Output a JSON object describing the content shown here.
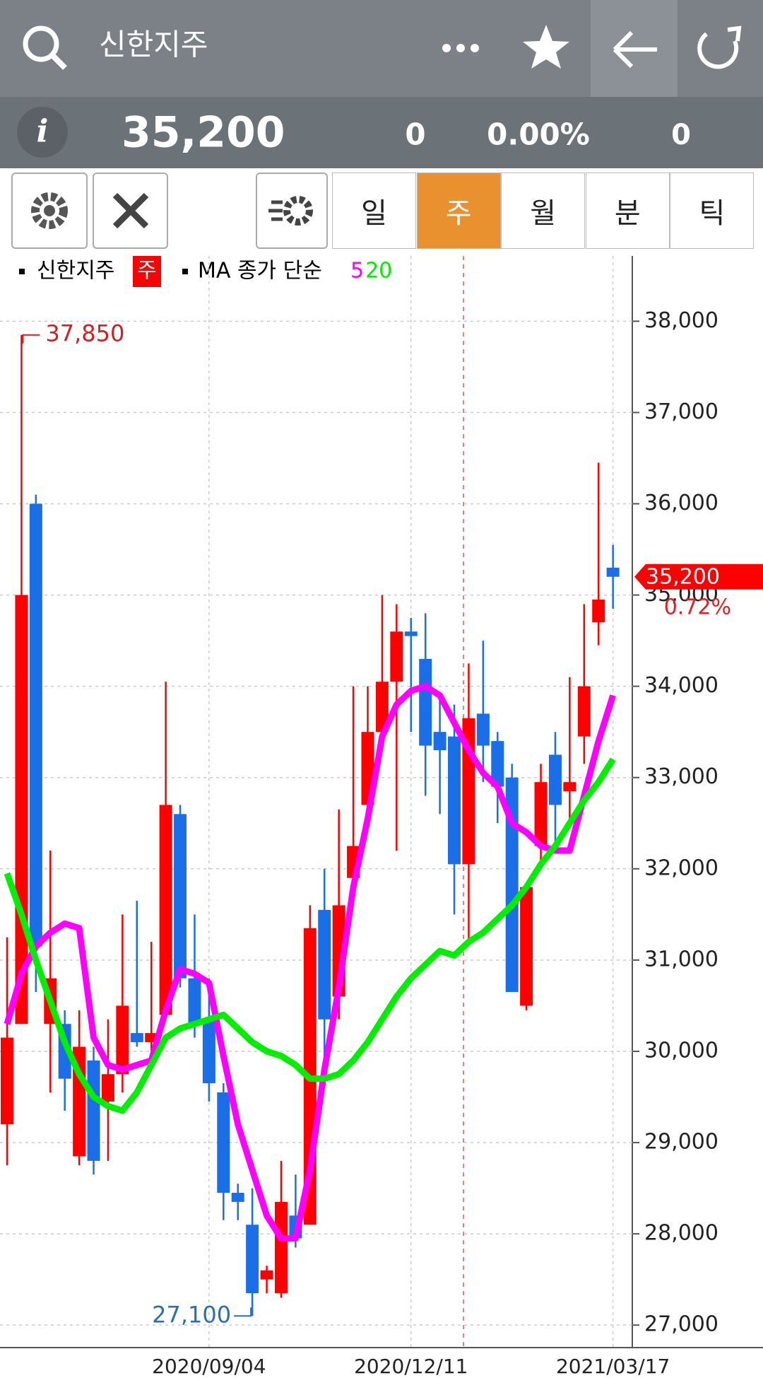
{
  "header": {
    "title": "신한지주"
  },
  "quote": {
    "price": "35,200",
    "change": "0",
    "rate": "0.00%",
    "volume": "0"
  },
  "periods": [
    "일",
    "주",
    "월",
    "분",
    "틱"
  ],
  "selected_period": 1,
  "chart_data": {
    "type": "candlestick",
    "legend_label": "신한지주",
    "period_badge": "주",
    "ma_label": "MA 종가 단순",
    "up_color": "#ff0000",
    "down_color": "#1a6ee8",
    "grid": true,
    "categories": [
      null,
      null,
      null,
      null,
      null,
      null,
      null,
      null,
      null,
      null,
      null,
      null,
      null,
      null,
      "2020/09/04",
      null,
      null,
      null,
      null,
      null,
      null,
      null,
      null,
      null,
      null,
      null,
      null,
      null,
      "2020/12/11",
      null,
      null,
      null,
      null,
      null,
      null,
      null,
      null,
      null,
      null,
      null,
      null,
      null,
      "2021/03/17"
    ],
    "open": [
      29200,
      30300,
      36000,
      30300,
      30300,
      28850,
      29900,
      29450,
      29750,
      30200,
      30100,
      30400,
      32600,
      30800,
      30350,
      29550,
      28450,
      28100,
      27500,
      27350,
      28200,
      28100,
      31550,
      30600,
      31900,
      32700,
      33500,
      34050,
      34600,
      34300,
      33500,
      33450,
      32050,
      33700,
      33400,
      33000,
      30500,
      32250,
      33250,
      32850,
      33450,
      34700,
      35300
    ],
    "high": [
      31250,
      37850,
      36100,
      32200,
      30450,
      30450,
      30050,
      30350,
      31500,
      31650,
      31200,
      34050,
      32700,
      31500,
      30800,
      29650,
      28550,
      28500,
      27650,
      28800,
      28650,
      31600,
      32000,
      32650,
      34000,
      34000,
      35000,
      34900,
      34750,
      34800,
      33900,
      33800,
      34250,
      34500,
      33500,
      33150,
      31800,
      33150,
      33500,
      34100,
      34900,
      36450,
      35550
    ],
    "low": [
      28750,
      30300,
      30650,
      29550,
      29350,
      28750,
      28650,
      28800,
      29550,
      30050,
      29800,
      30350,
      30700,
      30150,
      29450,
      28150,
      28150,
      27100,
      27350,
      27300,
      27850,
      28100,
      29800,
      30350,
      31900,
      32450,
      33300,
      32200,
      33500,
      32800,
      32600,
      31500,
      31200,
      32950,
      32500,
      30650,
      30450,
      32050,
      32250,
      32500,
      33150,
      34450,
      34850
    ],
    "close": [
      30150,
      35000,
      31150,
      30800,
      29700,
      30050,
      28800,
      29750,
      30500,
      30100,
      30200,
      32700,
      30800,
      30300,
      29650,
      28450,
      28350,
      27350,
      27600,
      28350,
      27950,
      31350,
      30350,
      31600,
      32250,
      33500,
      34050,
      34600,
      34550,
      33350,
      33300,
      32050,
      33650,
      33350,
      32900,
      30650,
      31800,
      32950,
      32700,
      32950,
      34000,
      34950,
      35200
    ],
    "series": [
      {
        "name": "5",
        "color": "#ff00ff",
        "values": [
          30300,
          30850,
          31150,
          31300,
          31400,
          31350,
          30150,
          29850,
          29800,
          29850,
          29900,
          30450,
          30900,
          30850,
          30750,
          29950,
          29200,
          28700,
          28200,
          27950,
          27950,
          28700,
          29800,
          30700,
          31800,
          32550,
          33450,
          33800,
          33950,
          34000,
          33900,
          33600,
          33300,
          33050,
          32900,
          32500,
          32400,
          32250,
          32200,
          32200,
          32800,
          33400,
          33900
        ]
      },
      {
        "name": "20",
        "color": "#00ee00",
        "values": [
          31950,
          31500,
          31000,
          30550,
          30100,
          29750,
          29500,
          29400,
          29350,
          29550,
          29850,
          30150,
          30250,
          30300,
          30350,
          30400,
          30250,
          30100,
          30000,
          29950,
          29850,
          29700,
          29700,
          29750,
          29900,
          30100,
          30350,
          30600,
          30800,
          30950,
          31100,
          31050,
          31200,
          31300,
          31450,
          31600,
          31800,
          32050,
          32250,
          32500,
          32750,
          32950,
          33200
        ]
      }
    ],
    "ylim": [
      26800,
      38700
    ],
    "yticks": [
      {
        "value": 27000,
        "label": "27,000"
      },
      {
        "value": 28000,
        "label": "28,000"
      },
      {
        "value": 29000,
        "label": "29,000"
      },
      {
        "value": 30000,
        "label": "30,000"
      },
      {
        "value": 31000,
        "label": "31,000"
      },
      {
        "value": 32000,
        "label": "32,000"
      },
      {
        "value": 33000,
        "label": "33,000"
      },
      {
        "value": 34000,
        "label": "34,000"
      },
      {
        "value": 35000,
        "label": "35,000"
      },
      {
        "value": 36000,
        "label": "36,000"
      },
      {
        "value": 37000,
        "label": "37,000"
      },
      {
        "value": 38000,
        "label": "38,000"
      }
    ],
    "high_label": "37,850",
    "low_label": "27,100",
    "last_label": "35,200",
    "last_change": "0.72%"
  }
}
